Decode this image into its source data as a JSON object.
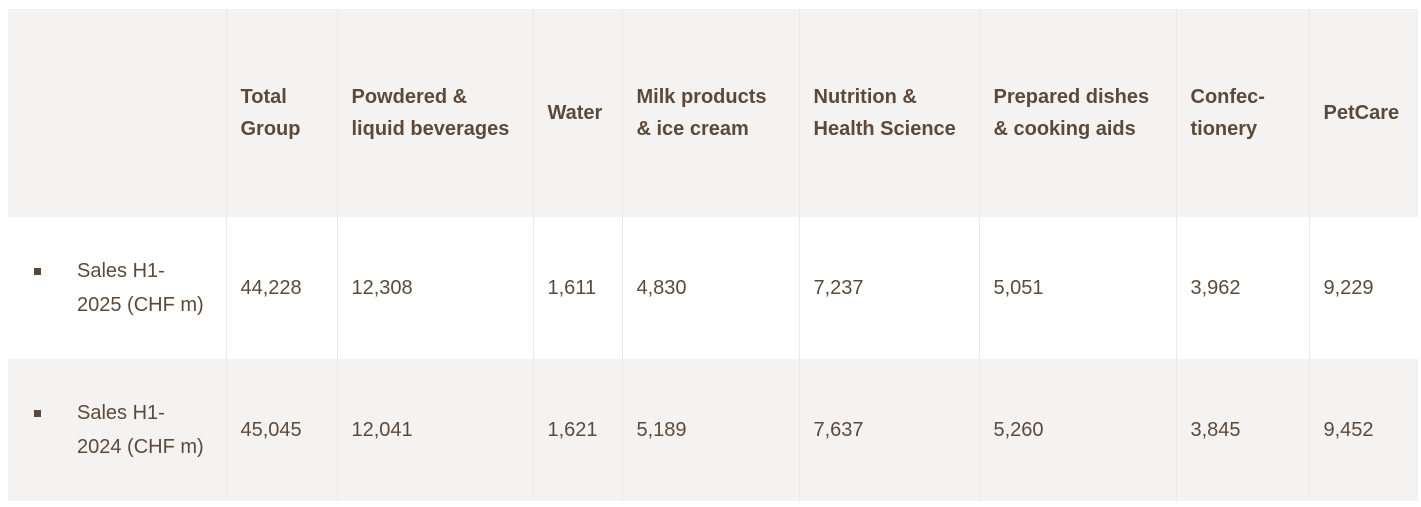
{
  "headers": [
    "",
    "Total Group",
    "Powdered & liquid beverages",
    "Water",
    "Milk products & ice cream",
    "Nutrition & Health Science",
    "Prepared dishes & cooking aids",
    "Confec-tionery",
    "PetCare"
  ],
  "header_lines": {
    "h1": [
      "Total",
      "Group"
    ],
    "h2": [
      "Powdered &",
      "liquid beverages"
    ],
    "h3": [
      "Water"
    ],
    "h4": [
      "Milk products",
      "& ice cream"
    ],
    "h5": [
      "Nutrition &",
      "Health Science"
    ],
    "h6": [
      "Prepared dishes",
      "& cooking aids"
    ],
    "h7": [
      "Confec-",
      "tionery"
    ],
    "h8": [
      "PetCare"
    ]
  },
  "rows": [
    {
      "label_lines": [
        "Sales H1-",
        "2025 (CHF m)"
      ],
      "values": [
        "44,228",
        "12,308",
        "1,611",
        "4,830",
        "7,237",
        "5,051",
        "3,962",
        "9,229"
      ]
    },
    {
      "label_lines": [
        "Sales H1-",
        "2024 (CHF m)"
      ],
      "values": [
        "45,045",
        "12,041",
        "1,621",
        "5,189",
        "7,637",
        "5,260",
        "3,845",
        "9,452"
      ]
    }
  ]
}
